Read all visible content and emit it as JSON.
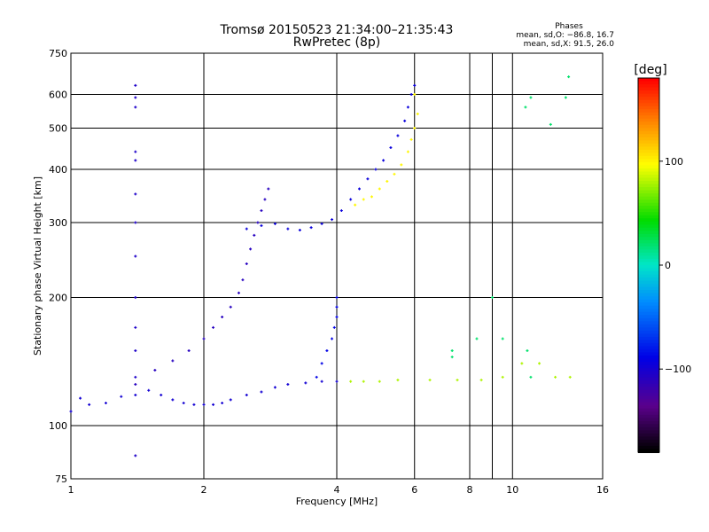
{
  "chart_data": {
    "type": "scatter",
    "title": "Tromsø 20150523 21:34:00–21:35:43",
    "subtitle": "RwPretec (8p)",
    "xlabel": "Frequency [MHz]",
    "ylabel": "Stationary phase Virtual Height [km]",
    "x_scale": "log2",
    "y_scale": "log",
    "xlim": [
      1,
      16
    ],
    "ylim": [
      75,
      750
    ],
    "x_ticks": [
      1,
      2,
      4,
      6,
      8,
      10,
      16
    ],
    "x_tick_labels": [
      "1",
      "2",
      "4",
      "6",
      "8",
      "10",
      "16"
    ],
    "x_extra_gridlines": [
      9
    ],
    "y_ticks": [
      75,
      100,
      200,
      300,
      400,
      500,
      600,
      750
    ],
    "y_tick_labels": [
      "75",
      "100",
      "200",
      "300",
      "400",
      "500",
      "600",
      "750"
    ],
    "grid": true,
    "phase_info": {
      "heading": "Phases",
      "line_o": "mean, sd,O: −86.8, 16.7",
      "line_x": "mean, sd,X:  91.5, 26.0"
    },
    "colorbar": {
      "label": "[deg]",
      "range": [
        -180,
        180
      ],
      "ticks": [
        100,
        0,
        -100
      ],
      "tick_labels": [
        "100",
        "0",
        "−100"
      ],
      "colormap": "rainbow"
    },
    "traces": [
      {
        "name": "",
        "phase": -100,
        "points": [
          [
            1.0,
            108
          ],
          [
            1.05,
            116
          ],
          [
            1.1,
            112
          ],
          [
            1.2,
            113
          ],
          [
            1.3,
            117
          ],
          [
            1.4,
            118
          ],
          [
            1.5,
            121
          ],
          [
            1.6,
            118
          ],
          [
            1.7,
            115
          ],
          [
            1.8,
            113
          ],
          [
            1.9,
            112
          ],
          [
            2.0,
            112
          ],
          [
            2.1,
            112
          ],
          [
            2.2,
            113
          ],
          [
            2.3,
            115
          ],
          [
            2.5,
            118
          ],
          [
            2.7,
            120
          ],
          [
            2.9,
            123
          ],
          [
            3.1,
            125
          ],
          [
            3.4,
            126
          ],
          [
            3.7,
            127
          ],
          [
            4.0,
            127
          ]
        ]
      },
      {
        "name": "",
        "phase": -110,
        "points": [
          [
            1.4,
            125
          ],
          [
            1.55,
            135
          ],
          [
            1.7,
            142
          ],
          [
            1.85,
            150
          ],
          [
            2.0,
            160
          ],
          [
            2.1,
            170
          ],
          [
            2.2,
            180
          ],
          [
            2.3,
            190
          ],
          [
            2.4,
            205
          ],
          [
            2.45,
            220
          ],
          [
            2.5,
            240
          ],
          [
            2.55,
            260
          ],
          [
            2.6,
            280
          ],
          [
            2.65,
            300
          ],
          [
            2.7,
            320
          ],
          [
            2.75,
            340
          ],
          [
            2.8,
            360
          ]
        ]
      },
      {
        "name": "",
        "phase": -95,
        "points": [
          [
            2.5,
            290
          ],
          [
            2.7,
            295
          ],
          [
            2.9,
            298
          ],
          [
            3.1,
            290
          ],
          [
            3.3,
            288
          ],
          [
            3.5,
            292
          ],
          [
            3.7,
            298
          ],
          [
            3.9,
            305
          ],
          [
            4.1,
            320
          ],
          [
            4.3,
            340
          ],
          [
            4.5,
            360
          ],
          [
            4.7,
            380
          ],
          [
            4.9,
            400
          ],
          [
            5.1,
            420
          ],
          [
            5.3,
            450
          ],
          [
            5.5,
            480
          ],
          [
            5.7,
            520
          ],
          [
            5.8,
            560
          ],
          [
            5.9,
            600
          ],
          [
            6.0,
            630
          ]
        ]
      },
      {
        "name": "",
        "phase": 100,
        "points": [
          [
            4.4,
            330
          ],
          [
            4.6,
            340
          ],
          [
            4.8,
            345
          ],
          [
            5.0,
            360
          ],
          [
            5.2,
            375
          ],
          [
            5.4,
            390
          ],
          [
            5.6,
            410
          ],
          [
            5.8,
            440
          ],
          [
            5.9,
            470
          ],
          [
            6.0,
            500
          ],
          [
            6.1,
            540
          ],
          [
            6.0,
            600
          ]
        ]
      },
      {
        "name": "",
        "phase": -105,
        "points": [
          [
            1.4,
            630
          ],
          [
            1.4,
            590
          ],
          [
            1.4,
            560
          ],
          [
            1.4,
            440
          ],
          [
            1.4,
            420
          ],
          [
            1.4,
            350
          ],
          [
            1.4,
            300
          ],
          [
            1.4,
            250
          ],
          [
            1.4,
            200
          ],
          [
            1.4,
            170
          ],
          [
            1.4,
            150
          ],
          [
            1.4,
            130
          ],
          [
            1.4,
            85
          ]
        ]
      },
      {
        "name": "",
        "phase": 80,
        "points": [
          [
            4.3,
            127
          ],
          [
            4.6,
            127
          ],
          [
            5.0,
            127
          ],
          [
            5.5,
            128
          ],
          [
            6.5,
            128
          ],
          [
            7.5,
            128
          ],
          [
            8.5,
            128
          ],
          [
            9.5,
            130
          ],
          [
            10.5,
            140
          ],
          [
            11.5,
            140
          ],
          [
            12.5,
            130
          ],
          [
            13.5,
            130
          ]
        ]
      },
      {
        "name": "",
        "phase": -90,
        "points": [
          [
            3.6,
            130
          ],
          [
            3.7,
            140
          ],
          [
            3.8,
            150
          ],
          [
            3.9,
            160
          ],
          [
            3.95,
            170
          ],
          [
            4.0,
            180
          ],
          [
            4.0,
            190
          ],
          [
            4.0,
            200
          ]
        ]
      },
      {
        "name": "",
        "phase": 20,
        "points": [
          [
            7.3,
            145
          ],
          [
            7.3,
            150
          ],
          [
            8.3,
            160
          ],
          [
            9.0,
            200
          ],
          [
            9.5,
            160
          ],
          [
            10.8,
            150
          ],
          [
            11.0,
            130
          ],
          [
            13.2,
            590
          ],
          [
            13.4,
            660
          ],
          [
            12.2,
            510
          ],
          [
            10.7,
            560
          ],
          [
            11.0,
            590
          ]
        ]
      }
    ]
  }
}
